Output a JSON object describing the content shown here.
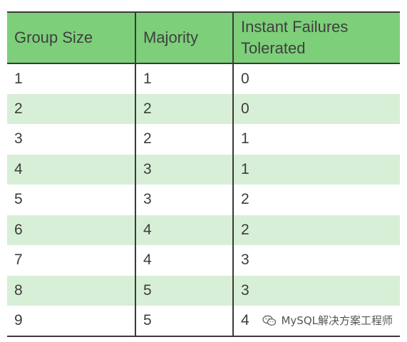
{
  "table": {
    "headers": [
      "Group Size",
      "Majority",
      "Instant Failures Tolerated"
    ],
    "rows": [
      [
        "1",
        "1",
        "0"
      ],
      [
        "2",
        "2",
        "0"
      ],
      [
        "3",
        "2",
        "1"
      ],
      [
        "4",
        "3",
        "1"
      ],
      [
        "5",
        "3",
        "2"
      ],
      [
        "6",
        "4",
        "2"
      ],
      [
        "7",
        "4",
        "3"
      ],
      [
        "8",
        "5",
        "3"
      ],
      [
        "9",
        "5",
        "4"
      ]
    ]
  },
  "watermark": {
    "icon": "wechat-icon",
    "text": "MySQL解决方案工程师"
  },
  "colors": {
    "header_bg": "#7dcf7a",
    "stripe_bg": "#d7efd6",
    "border": "#3a3a3a",
    "text": "#3d3d3d"
  }
}
